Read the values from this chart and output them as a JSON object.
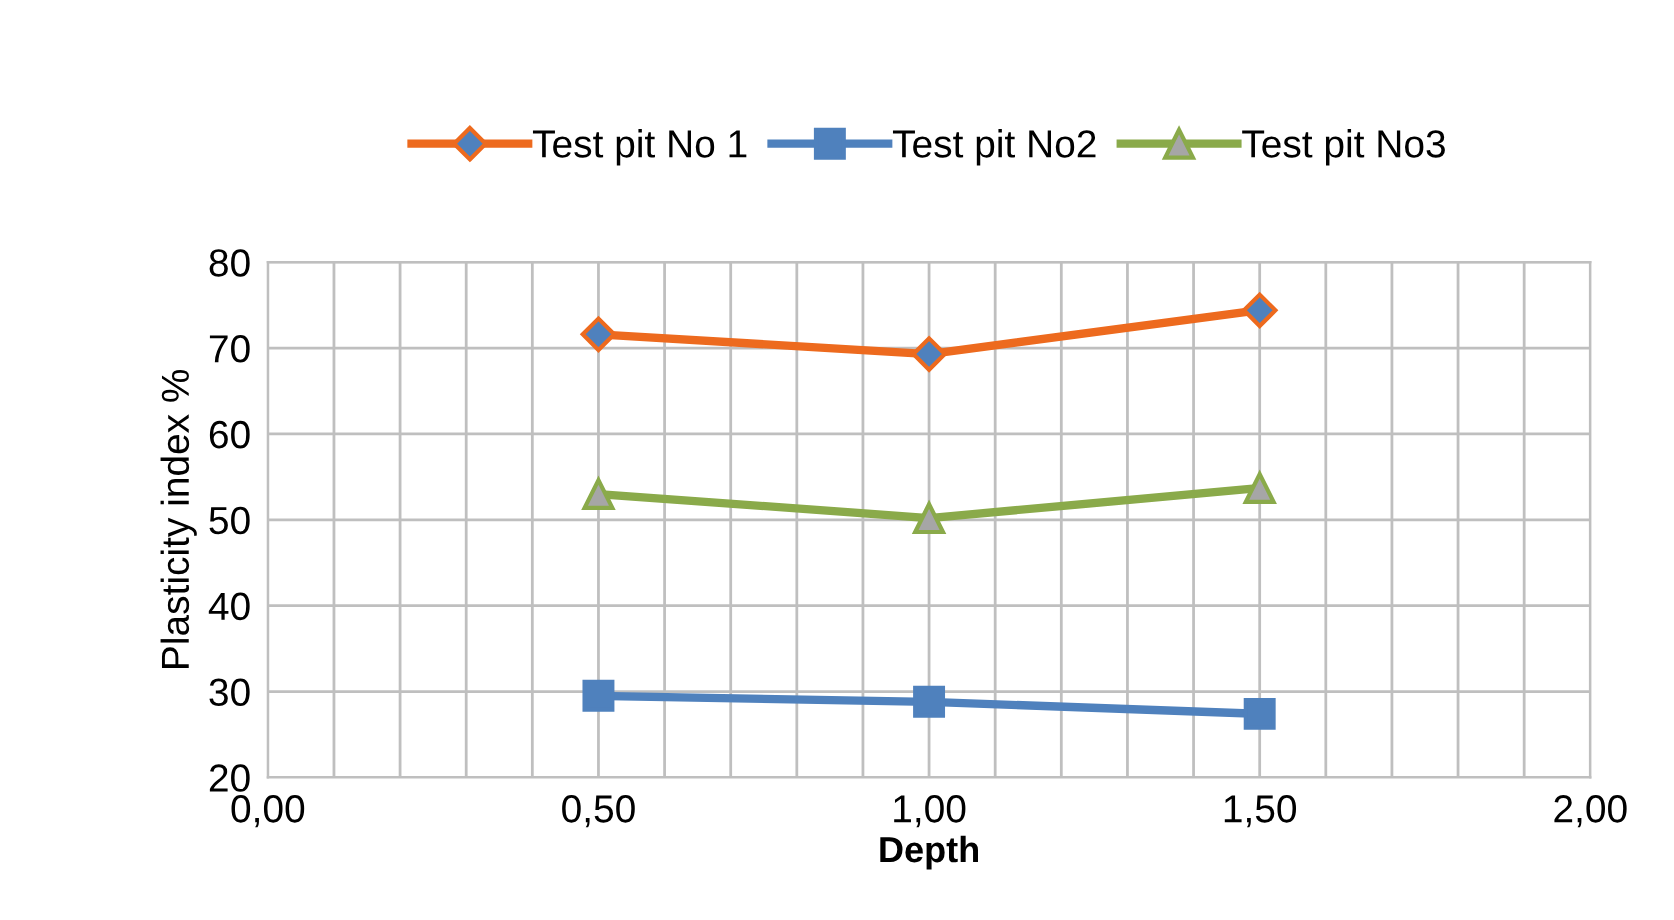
{
  "chart_data": {
    "type": "line",
    "xlabel": "Depth",
    "ylabel": "Plasticity index %",
    "x": [
      0.5,
      1.0,
      1.5
    ],
    "series": [
      {
        "name": "Test pit No 1",
        "color": "#ed6a1e",
        "marker": "diamond",
        "values": [
          71.6,
          69.3,
          74.4
        ]
      },
      {
        "name": "Test pit No2",
        "color": "#4f81bd",
        "marker": "square",
        "values": [
          29.5,
          28.8,
          27.4
        ]
      },
      {
        "name": "Test pit No3",
        "color": "#8aaa4a",
        "marker": "triangle",
        "values": [
          53.0,
          50.2,
          53.7
        ]
      }
    ],
    "xlim": [
      0,
      2
    ],
    "ylim": [
      20,
      80
    ],
    "xticks": [
      {
        "value": 0,
        "label": "0,00"
      },
      {
        "value": 0.1,
        "label": null
      },
      {
        "value": 0.2,
        "label": null
      },
      {
        "value": 0.3,
        "label": null
      },
      {
        "value": 0.4,
        "label": null
      },
      {
        "value": 0.5,
        "label": "0,50"
      },
      {
        "value": 0.6,
        "label": null
      },
      {
        "value": 0.7,
        "label": null
      },
      {
        "value": 0.8,
        "label": null
      },
      {
        "value": 0.9,
        "label": null
      },
      {
        "value": 1.0,
        "label": "1,00"
      },
      {
        "value": 1.1,
        "label": null
      },
      {
        "value": 1.2,
        "label": null
      },
      {
        "value": 1.3,
        "label": null
      },
      {
        "value": 1.4,
        "label": null
      },
      {
        "value": 1.5,
        "label": "1,50"
      },
      {
        "value": 1.6,
        "label": null
      },
      {
        "value": 1.7,
        "label": null
      },
      {
        "value": 1.8,
        "label": null
      },
      {
        "value": 1.9,
        "label": null
      },
      {
        "value": 2.0,
        "label": "2,00"
      }
    ],
    "yticks": [
      20,
      30,
      40,
      50,
      60,
      70,
      80
    ],
    "grid": true,
    "legend": "top",
    "line_style": "solid"
  }
}
